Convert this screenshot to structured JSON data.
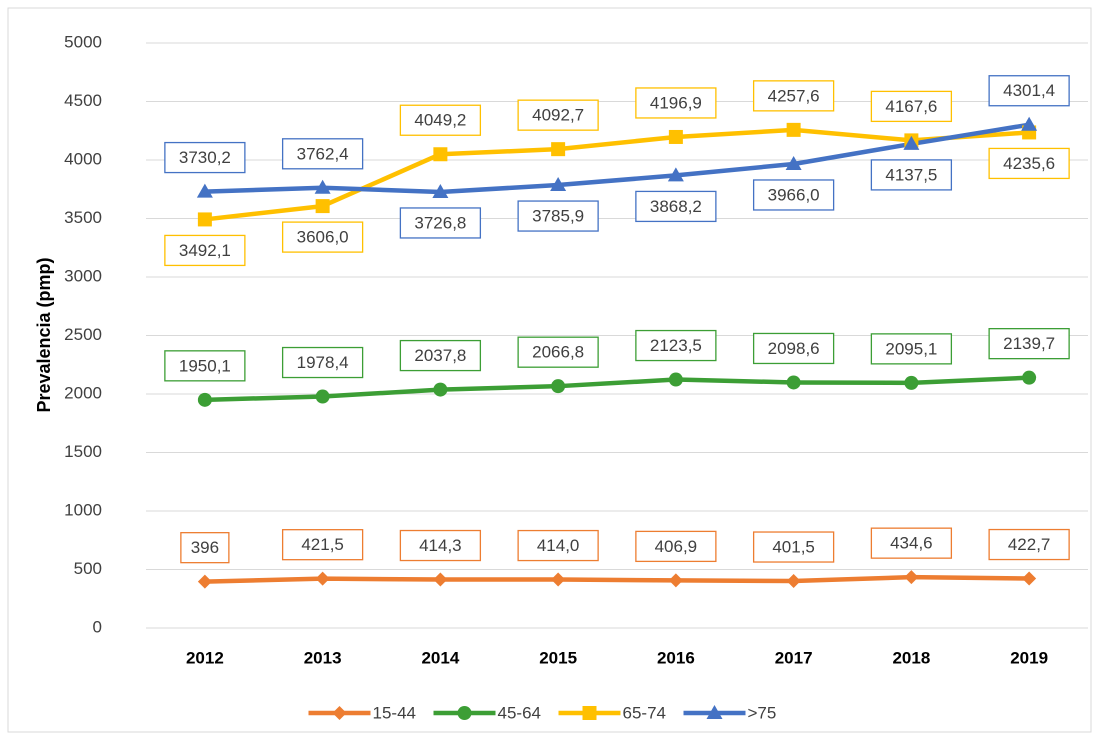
{
  "chart_data": {
    "type": "line",
    "ylabel": "Prevalencia (pmp)",
    "categories": [
      "2012",
      "2013",
      "2014",
      "2015",
      "2016",
      "2017",
      "2018",
      "2019"
    ],
    "series": [
      {
        "name": "15-44",
        "color": "#ED7D31",
        "marker": "diamond",
        "values": [
          396,
          421.5,
          414.3,
          414.0,
          406.9,
          401.5,
          434.6,
          422.7
        ],
        "value_labels": [
          "396",
          "421,5",
          "414,3",
          "414,0",
          "406,9",
          "401,5",
          "434,6",
          "422,7"
        ]
      },
      {
        "name": "45-64",
        "color": "#3C9E35",
        "marker": "circle",
        "values": [
          1950.1,
          1978.4,
          2037.8,
          2066.8,
          2123.5,
          2098.6,
          2095.1,
          2139.7
        ],
        "value_labels": [
          "1950,1",
          "1978,4",
          "2037,8",
          "2066,8",
          "2123,5",
          "2098,6",
          "2095,1",
          "2139,7"
        ]
      },
      {
        "name": "65-74",
        "color": "#FFC000",
        "marker": "square",
        "values": [
          3492.1,
          3606.0,
          4049.2,
          4092.7,
          4196.9,
          4257.6,
          4167.6,
          4235.6
        ],
        "value_labels": [
          "3492,1",
          "3606,0",
          "4049,2",
          "4092,7",
          "4196,9",
          "4257,6",
          "4167,6",
          "4235,6"
        ]
      },
      {
        "name": ">75",
        "color": "#4472C4",
        "marker": "triangle",
        "values": [
          3730.2,
          3762.4,
          3726.8,
          3785.9,
          3868.2,
          3966.0,
          4137.5,
          4301.4
        ],
        "value_labels": [
          "3730,2",
          "3762,4",
          "3726,8",
          "3785,9",
          "3868,2",
          "3966,0",
          "4137,5",
          "4301,4"
        ]
      }
    ],
    "ylim": [
      0,
      5000
    ],
    "yticks": [
      0,
      500,
      1000,
      1500,
      2000,
      2500,
      3000,
      3500,
      4000,
      4500,
      5000
    ],
    "grid": true,
    "legend": "bottom"
  }
}
